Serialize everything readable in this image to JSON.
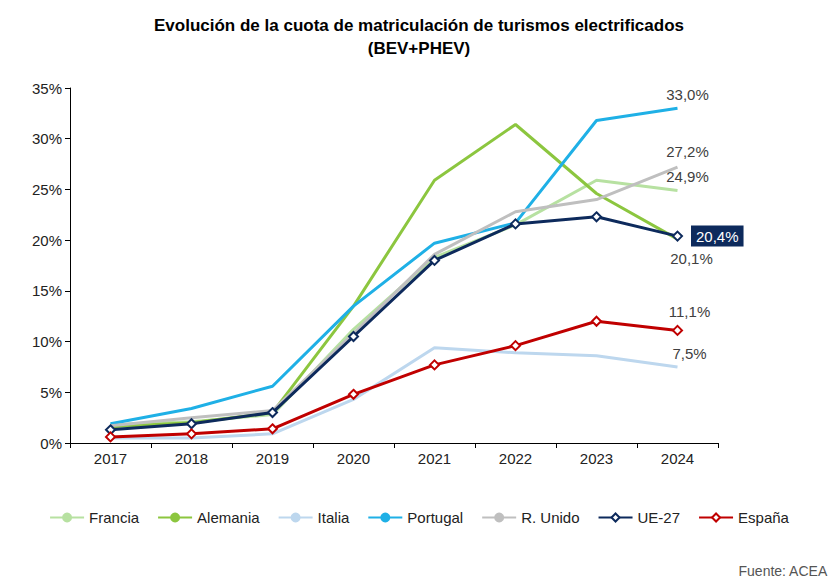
{
  "chart_data": {
    "type": "line",
    "title": "Evolución de la cuota de matriculación de turismos electrificados",
    "subtitle": "(BEV+PHEV)",
    "annotations": [
      "Fuente: ACEA"
    ],
    "categories": [
      "2017",
      "2018",
      "2019",
      "2020",
      "2021",
      "2022",
      "2023",
      "2024"
    ],
    "ylim": [
      0,
      35
    ],
    "yticks": [
      {
        "value": 0,
        "label": "0%"
      },
      {
        "value": 5,
        "label": "5%"
      },
      {
        "value": 10,
        "label": "10%"
      },
      {
        "value": 15,
        "label": "15%"
      },
      {
        "value": 20,
        "label": "20%"
      },
      {
        "value": 25,
        "label": "25%"
      },
      {
        "value": 30,
        "label": "30%"
      },
      {
        "value": 35,
        "label": "35%"
      }
    ],
    "grid": false,
    "legend": "bottom",
    "data_labels": true,
    "series": [
      {
        "name": "Francia",
        "color": "#b7e1a1",
        "marker": "none",
        "values": [
          1.8,
          2.1,
          2.8,
          11.2,
          18.3,
          21.5,
          25.9,
          24.9
        ],
        "value_labels": [
          null,
          null,
          null,
          null,
          null,
          null,
          null,
          "24,9%"
        ]
      },
      {
        "name": "Alemania",
        "color": "#8cc63f",
        "marker": "none",
        "values": [
          1.6,
          2.0,
          3.0,
          13.5,
          25.9,
          31.4,
          24.6,
          20.1
        ],
        "value_labels": [
          null,
          null,
          null,
          null,
          null,
          null,
          null,
          "20,1%"
        ]
      },
      {
        "name": "Italia",
        "color": "#bdd7ee",
        "marker": "none",
        "values": [
          0.5,
          0.5,
          0.9,
          4.3,
          9.4,
          8.9,
          8.6,
          7.5
        ],
        "value_labels": [
          null,
          null,
          null,
          null,
          null,
          null,
          null,
          "7,5%"
        ]
      },
      {
        "name": "Portugal",
        "color": "#1fb0e6",
        "marker": "none",
        "values": [
          1.9,
          3.4,
          5.6,
          13.5,
          19.7,
          21.7,
          31.8,
          33.0
        ],
        "value_labels": [
          null,
          null,
          null,
          null,
          null,
          null,
          null,
          "33,0%"
        ]
      },
      {
        "name": "R. Unido",
        "color": "#bfbfbf",
        "marker": "none",
        "values": [
          1.7,
          2.5,
          3.2,
          10.8,
          18.6,
          22.8,
          24.0,
          27.2
        ],
        "value_labels": [
          null,
          null,
          null,
          null,
          null,
          null,
          null,
          "27,2%"
        ]
      },
      {
        "name": "UE-27",
        "color": "#0d2a5c",
        "marker": "diamond",
        "values": [
          1.3,
          1.9,
          3.0,
          10.5,
          18.0,
          21.6,
          22.3,
          20.4
        ],
        "value_labels": [
          null,
          null,
          null,
          null,
          null,
          null,
          null,
          "20,4%"
        ]
      },
      {
        "name": "España",
        "color": "#c00000",
        "marker": "diamond",
        "values": [
          0.6,
          0.9,
          1.4,
          4.8,
          7.7,
          9.6,
          12.0,
          11.1
        ],
        "value_labels": [
          null,
          null,
          null,
          null,
          null,
          null,
          null,
          "11,1%"
        ]
      }
    ]
  }
}
